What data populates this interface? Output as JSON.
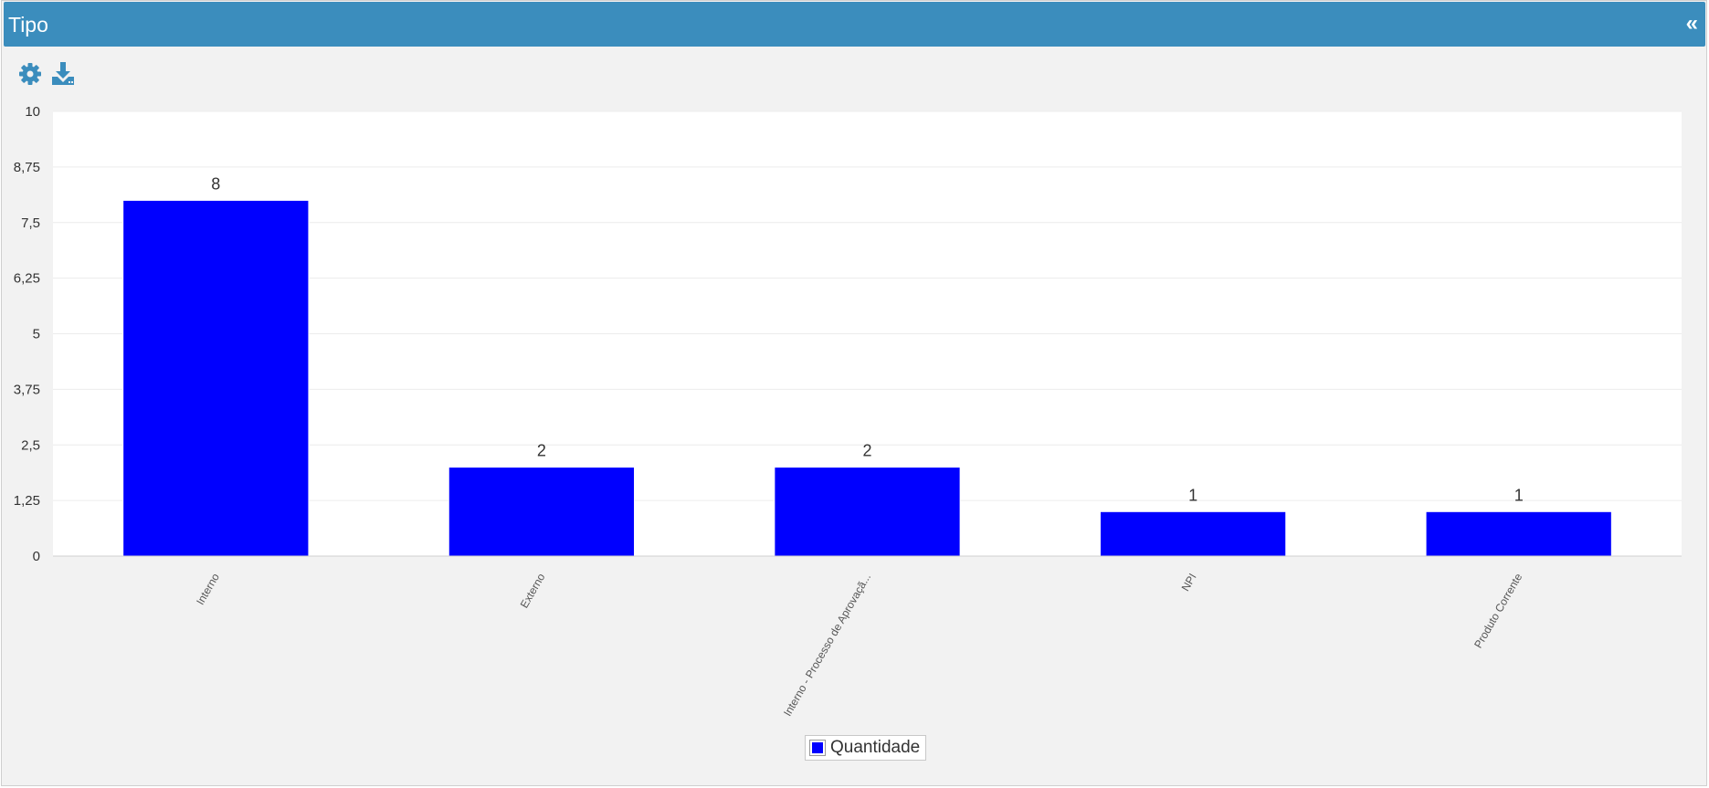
{
  "header": {
    "title": "Tipo",
    "collapse_label": "«"
  },
  "toolbar": {
    "icons": [
      "gear-icon",
      "download-icon"
    ]
  },
  "colors": {
    "header_bg": "#3b8dbd",
    "bar": "#0000ff",
    "panel_bg": "#f2f2f2",
    "plot_bg": "#ffffff"
  },
  "chart_data": {
    "type": "bar",
    "categories": [
      "Interno",
      "Externo",
      "Interno - Processo de Aprovaçã...",
      "NPI",
      "Produto Corrente"
    ],
    "series": [
      {
        "name": "Quantidade",
        "values": [
          8,
          2,
          2,
          1,
          1
        ]
      }
    ],
    "ylim": [
      0,
      10
    ],
    "yticks": [
      0,
      1.25,
      2.5,
      3.75,
      5,
      6.25,
      7.5,
      8.75,
      10
    ],
    "ytick_labels": [
      "0",
      "1,25",
      "2,5",
      "3,75",
      "5",
      "6,25",
      "7,5",
      "8,75",
      "10"
    ],
    "data_labels": [
      "8",
      "2",
      "2",
      "1",
      "1"
    ],
    "grid": true,
    "legend_position": "bottom-center",
    "title": "",
    "xlabel": "",
    "ylabel": ""
  }
}
